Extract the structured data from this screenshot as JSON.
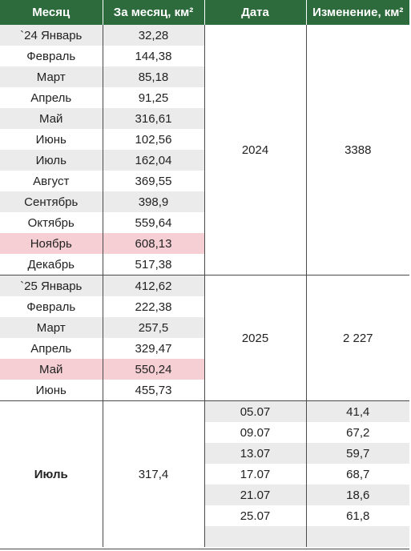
{
  "headers": {
    "month": "Месяц",
    "monthly": "За месяц, км²",
    "date": "Дата",
    "change": "Изменение, км²"
  },
  "rows_2024": [
    {
      "month": "`24 Январь",
      "value": "32,28"
    },
    {
      "month": "Февраль",
      "value": "144,38"
    },
    {
      "month": "Март",
      "value": "85,18"
    },
    {
      "month": "Апрель",
      "value": "91,25"
    },
    {
      "month": "Май",
      "value": "316,61"
    },
    {
      "month": "Июнь",
      "value": "102,56"
    },
    {
      "month": "Июль",
      "value": "162,04"
    },
    {
      "month": "Август",
      "value": "369,55"
    },
    {
      "month": "Сентябрь",
      "value": "398,9"
    },
    {
      "month": "Октябрь",
      "value": "559,64"
    },
    {
      "month": "Ноябрь",
      "value": "608,13"
    },
    {
      "month": "Декабрь",
      "value": "517,38"
    }
  ],
  "year_2024": {
    "date": "2024",
    "change": "3388"
  },
  "rows_2025": [
    {
      "month": "`25 Январь",
      "value": "412,62"
    },
    {
      "month": "Февраль",
      "value": "222,38"
    },
    {
      "month": "Март",
      "value": "257,5"
    },
    {
      "month": "Апрель",
      "value": "329,47"
    },
    {
      "month": "Май",
      "value": "550,24"
    },
    {
      "month": "Июнь",
      "value": "455,73"
    }
  ],
  "year_2025": {
    "date": "2025",
    "change": "2 227"
  },
  "july": {
    "month": "Июль",
    "value": "317,4",
    "entries": [
      {
        "date": "05.07",
        "change": "41,4"
      },
      {
        "date": "09.07",
        "change": "67,2"
      },
      {
        "date": "13.07",
        "change": "59,7"
      },
      {
        "date": "17.07",
        "change": "68,7"
      },
      {
        "date": "21.07",
        "change": "18,6"
      },
      {
        "date": "25.07",
        "change": "61,8"
      }
    ]
  },
  "colors": {
    "header_bg": "#2e6b3c",
    "shade": "#ebebeb",
    "highlight": "#f5cfd3"
  }
}
